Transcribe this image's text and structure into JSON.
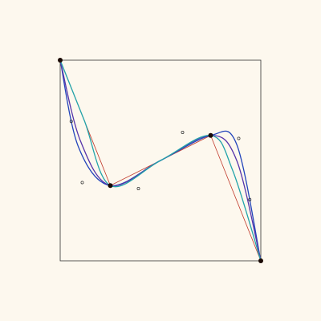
{
  "diagram": {
    "domain": {
      "x": [
        0,
        1
      ],
      "y": [
        0,
        1
      ]
    },
    "colors": {
      "background": "#fdf8ee",
      "frame": "#333333",
      "control_polygon": "#c0392b",
      "control_point": "#1a0a05",
      "aux_point": "#333333"
    },
    "control_points": [
      [
        0.0,
        1.0
      ],
      [
        0.25,
        0.375
      ],
      [
        0.75,
        0.625
      ],
      [
        1.0,
        0.0
      ]
    ],
    "curves": [
      {
        "id": "curve-blue",
        "color": "#2244bb",
        "points": [
          [
            0.0,
            1.0
          ],
          [
            0.09,
            0.57
          ],
          [
            0.25,
            0.375
          ],
          [
            0.5,
            0.5
          ],
          [
            0.75,
            0.625
          ],
          [
            0.88,
            0.58
          ],
          [
            1.0,
            0.0
          ]
        ]
      },
      {
        "id": "curve-purple",
        "color": "#5533aa",
        "points": [
          [
            0.0,
            1.0
          ],
          [
            0.1,
            0.6
          ],
          [
            0.25,
            0.375
          ],
          [
            0.5,
            0.5
          ],
          [
            0.75,
            0.625
          ],
          [
            0.88,
            0.5
          ],
          [
            1.0,
            0.0
          ]
        ]
      },
      {
        "id": "curve-teal",
        "color": "#22a3aa",
        "points": [
          [
            0.0,
            1.0
          ],
          [
            0.12,
            0.7
          ],
          [
            0.25,
            0.375
          ],
          [
            0.5,
            0.5
          ],
          [
            0.75,
            0.625
          ],
          [
            0.86,
            0.45
          ],
          [
            1.0,
            0.0
          ]
        ]
      }
    ],
    "aux_points": [
      [
        0.055,
        0.695
      ],
      [
        0.11,
        0.39
      ],
      [
        0.39,
        0.36
      ],
      [
        0.61,
        0.64
      ],
      [
        0.89,
        0.61
      ],
      [
        0.945,
        0.305
      ]
    ]
  }
}
